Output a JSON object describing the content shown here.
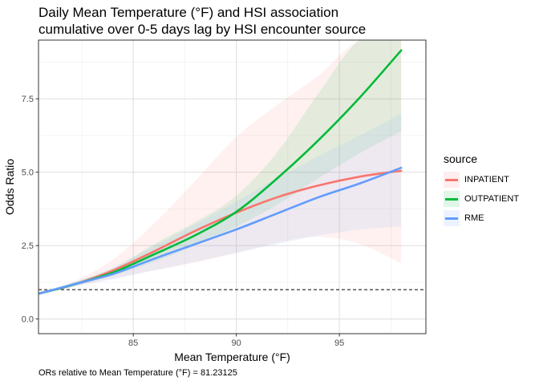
{
  "title": "Daily Mean Temperature (°F) and HSI association\ncumulative over 0-5 days lag by HSI encounter source",
  "caption": "ORs relative to Mean Temperature (°F) = 81.23125",
  "legend": {
    "title": "source",
    "items": [
      {
        "label": "INPATIENT",
        "color": "#F8766D"
      },
      {
        "label": "OUTPATIENT",
        "color": "#00BA38"
      },
      {
        "label": "RME",
        "color": "#619CFF"
      }
    ]
  },
  "chart_data": {
    "type": "line",
    "xlabel": "Mean Temperature (°F)",
    "ylabel": "Odds Ratio",
    "xlim": [
      80.4,
      99.2
    ],
    "ylim": [
      -0.5,
      9.5
    ],
    "xticks": [
      85,
      90,
      95
    ],
    "xtick_labels": [
      "85",
      "90",
      "95"
    ],
    "yticks": [
      0,
      2.5,
      5,
      7.5
    ],
    "ytick_labels": [
      "0.0",
      "2.5",
      "5.0",
      "7.5"
    ],
    "reference_line": 1,
    "x": [
      80.4,
      82,
      84,
      86,
      88,
      90,
      92,
      94,
      96,
      98
    ],
    "series": [
      {
        "name": "INPATIENT",
        "color": "#F8766D",
        "values": [
          0.87,
          1.15,
          1.65,
          2.3,
          3.0,
          3.62,
          4.15,
          4.55,
          4.85,
          5.05
        ],
        "lower": [
          0.83,
          1.07,
          1.38,
          1.65,
          1.92,
          2.25,
          2.6,
          2.8,
          2.55,
          1.9
        ],
        "upper": [
          0.92,
          1.25,
          2.02,
          3.25,
          4.7,
          6.2,
          7.3,
          8.3,
          9.5,
          9.5
        ]
      },
      {
        "name": "OUTPATIENT",
        "color": "#00BA38",
        "values": [
          0.86,
          1.15,
          1.58,
          2.2,
          2.85,
          3.65,
          4.8,
          6.1,
          7.55,
          9.15
        ],
        "lower": [
          0.83,
          1.1,
          1.48,
          1.95,
          2.5,
          3.15,
          3.9,
          4.8,
          5.65,
          6.4
        ],
        "upper": [
          0.9,
          1.22,
          1.72,
          2.55,
          3.3,
          4.2,
          5.7,
          7.7,
          9.5,
          9.5
        ]
      },
      {
        "name": "RME",
        "color": "#619CFF",
        "values": [
          0.86,
          1.16,
          1.53,
          2.05,
          2.55,
          3.05,
          3.6,
          4.15,
          4.62,
          5.15
        ],
        "lower": [
          0.83,
          1.1,
          1.35,
          1.65,
          1.95,
          2.25,
          2.55,
          2.85,
          3.05,
          3.15
        ],
        "upper": [
          0.9,
          1.23,
          1.75,
          2.48,
          3.22,
          4.0,
          4.8,
          5.55,
          6.25,
          7.0
        ]
      }
    ],
    "grid": true,
    "legend_position": "right"
  }
}
